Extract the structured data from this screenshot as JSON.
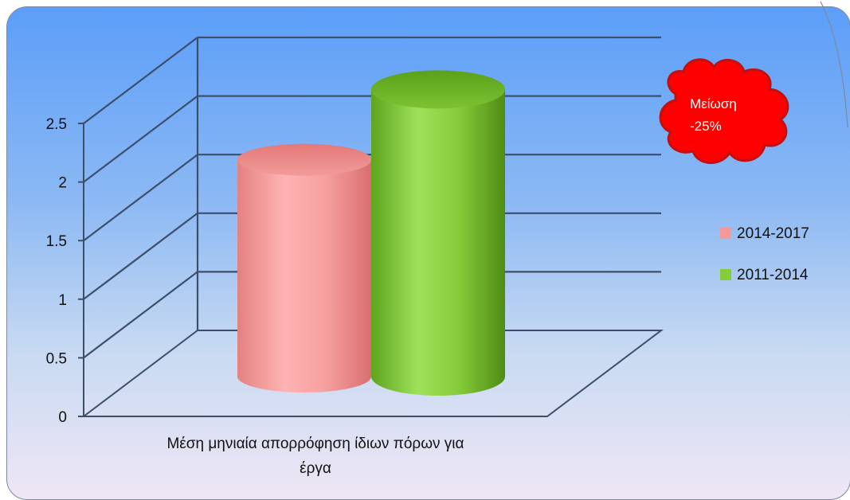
{
  "chart_data": {
    "type": "bar",
    "categories": [
      "Μέση μηνιαία απορρόφηση ίδιων πόρων για έργα"
    ],
    "series": [
      {
        "name": "2014-2017",
        "values": [
          1.85
        ],
        "color": "#f59a9a"
      },
      {
        "name": "2011-2014",
        "values": [
          2.45
        ],
        "color": "#86cc3a"
      }
    ],
    "y_ticks": [
      "0",
      "0.5",
      "1",
      "1.5",
      "2",
      "2.5"
    ],
    "ylim": [
      0,
      2.5
    ],
    "grid": true,
    "legend_position": "right",
    "annotation": {
      "line1": "Μείωση",
      "line2": "-25%",
      "color": "#ff0000"
    }
  }
}
